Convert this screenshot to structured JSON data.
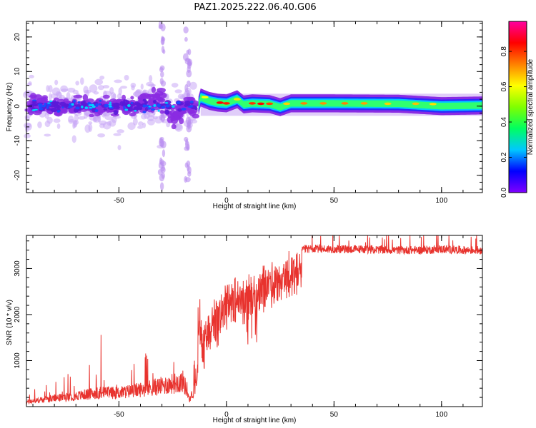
{
  "title": "PAZ1.2025.222.06.40.G06",
  "colors": {
    "snr_line": "#e8332e",
    "colormap": [
      "#8000ff",
      "#0000ff",
      "#00c8ff",
      "#00ff60",
      "#80ff00",
      "#ffff00",
      "#ff8000",
      "#ff0000",
      "#ff00a0"
    ]
  },
  "chart_data": [
    {
      "type": "heatmap",
      "name": "spectrogram",
      "xlabel": "Height of straight line (km)",
      "ylabel": "Frequency (Hz)",
      "xlim": [
        -93,
        119
      ],
      "ylim": [
        -25,
        24.5
      ],
      "xticks": [
        -50,
        0,
        50,
        100
      ],
      "yticks": [
        -20,
        -10,
        0,
        10,
        20
      ],
      "colorbar": {
        "label": "Normalized spectral amplitude",
        "range": [
          0,
          0.97
        ],
        "ticks": [
          "0.0",
          "0.2",
          "0.4",
          "0.6",
          "0.8"
        ],
        "tick_values": [
          0.0,
          0.2,
          0.4,
          0.6,
          0.8
        ]
      },
      "ridge": {
        "x": [
          -12,
          -8,
          -4,
          0,
          5,
          8,
          12,
          20,
          25,
          30,
          50,
          80,
          100,
          119
        ],
        "freq": [
          2.5,
          1.5,
          1.0,
          0.8,
          2.0,
          0.5,
          0.8,
          0.6,
          -0.3,
          0.8,
          0.8,
          0.7,
          0.0,
          0.2
        ]
      }
    },
    {
      "type": "line",
      "name": "snr",
      "xlabel": "Height of straight line (km)",
      "ylabel": "SNR (10 * v/v)",
      "xlim": [
        -93,
        119
      ],
      "ylim": [
        0,
        3720
      ],
      "xticks": [
        -50,
        0,
        50,
        100
      ],
      "yticks": [
        1000,
        2000,
        3000
      ],
      "series": [
        {
          "x": [
            -93,
            -80,
            -70,
            -60,
            -50,
            -40,
            -30,
            -20,
            -17,
            -14,
            -12,
            -10,
            -8,
            -5,
            -2,
            0,
            3,
            6,
            10,
            13,
            16,
            20,
            25,
            30,
            35,
            40,
            50,
            60,
            70,
            80,
            90,
            100,
            110,
            119
          ],
          "values": [
            100,
            180,
            230,
            300,
            300,
            370,
            450,
            550,
            150,
            500,
            2000,
            1800,
            2100,
            2250,
            2400,
            2650,
            2700,
            2800,
            2800,
            2900,
            2950,
            3100,
            3200,
            3300,
            3420,
            3430,
            3420,
            3420,
            3410,
            3400,
            3400,
            3420,
            3400,
            3400
          ]
        }
      ]
    }
  ]
}
